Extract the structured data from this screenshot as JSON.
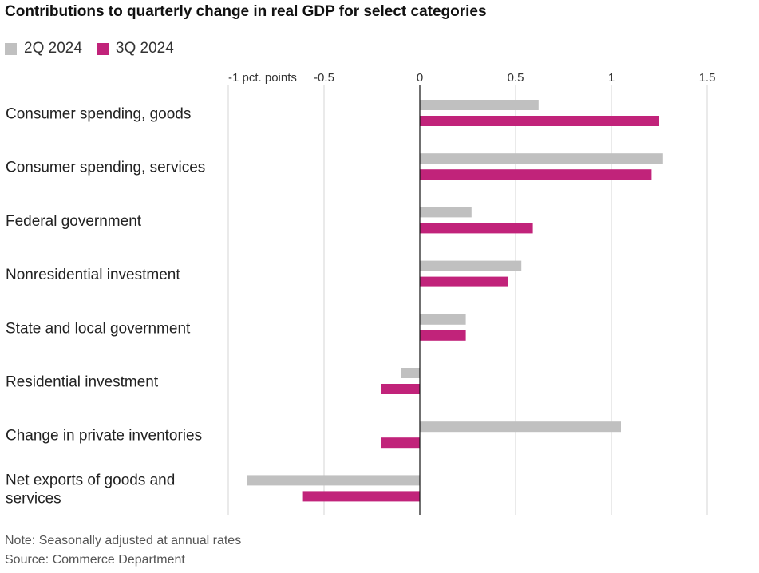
{
  "title": "Contributions to quarterly change in real GDP for select categories",
  "legend": [
    {
      "label": "2Q 2024",
      "color": "#c0c0c0"
    },
    {
      "label": "3Q 2024",
      "color": "#c1237a"
    }
  ],
  "note": "Note: Seasonally adjusted at annual rates",
  "source": "Source: Commerce Department",
  "chart_data": {
    "type": "bar",
    "orientation": "horizontal",
    "title": "Contributions to quarterly change in real GDP for select categories",
    "xlabel": "",
    "ylabel": "",
    "xlim": [
      -1,
      1.5
    ],
    "ticks": [
      {
        "value": -1,
        "label": "-1 pct. points"
      },
      {
        "value": -0.5,
        "label": "-0.5"
      },
      {
        "value": 0,
        "label": "0"
      },
      {
        "value": 0.5,
        "label": "0.5"
      },
      {
        "value": 1,
        "label": "1"
      },
      {
        "value": 1.5,
        "label": "1.5"
      }
    ],
    "grid": true,
    "legend_position": "top-left",
    "categories": [
      [
        "Consumer spending, goods"
      ],
      [
        "Consumer spending, services"
      ],
      [
        "Federal government"
      ],
      [
        "Nonresidential investment"
      ],
      [
        "State and local government"
      ],
      [
        "Residential investment"
      ],
      [
        "Change in private inventories"
      ],
      [
        "Net exports of goods and",
        "services"
      ]
    ],
    "series": [
      {
        "name": "2Q 2024",
        "color": "#c0c0c0",
        "values": [
          0.62,
          1.27,
          0.27,
          0.53,
          0.24,
          -0.1,
          1.05,
          -0.9
        ]
      },
      {
        "name": "3Q 2024",
        "color": "#c1237a",
        "values": [
          1.25,
          1.21,
          0.59,
          0.46,
          0.24,
          -0.2,
          -0.2,
          -0.61
        ]
      }
    ]
  }
}
